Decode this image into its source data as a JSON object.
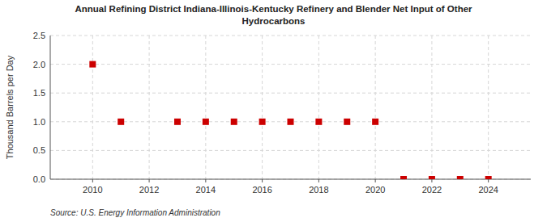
{
  "chart_data": {
    "type": "scatter",
    "title": "Annual Refining District Indiana-Illinois-Kentucky Refinery and Blender Net Input of Other\nHydrocarbons",
    "y_label": "Thousand Barrels per Day",
    "annotations": [
      "Source: U.S. Energy Information Administration"
    ],
    "x": [
      2010,
      2011,
      2013,
      2014,
      2015,
      2016,
      2017,
      2018,
      2019,
      2020,
      2021,
      2022,
      2023,
      2024
    ],
    "values": [
      2.0,
      1.0,
      1.0,
      1.0,
      1.0,
      1.0,
      1.0,
      1.0,
      1.0,
      1.0,
      0.0,
      0.0,
      0.0,
      0.0
    ],
    "color": "#cc0000",
    "marker": "square",
    "xlim": [
      2008.5,
      2025.5
    ],
    "ylim": [
      0.0,
      2.5
    ],
    "xticks": [
      2010,
      2012,
      2014,
      2016,
      2018,
      2020,
      2022,
      2024
    ],
    "yticks": [
      {
        "value": 0.0,
        "label": "0.0"
      },
      0.5,
      {
        "value": 1.0,
        "label": "1.0"
      },
      1.5,
      {
        "value": 2.0,
        "label": "2.0"
      },
      2.5
    ],
    "grid": true
  }
}
